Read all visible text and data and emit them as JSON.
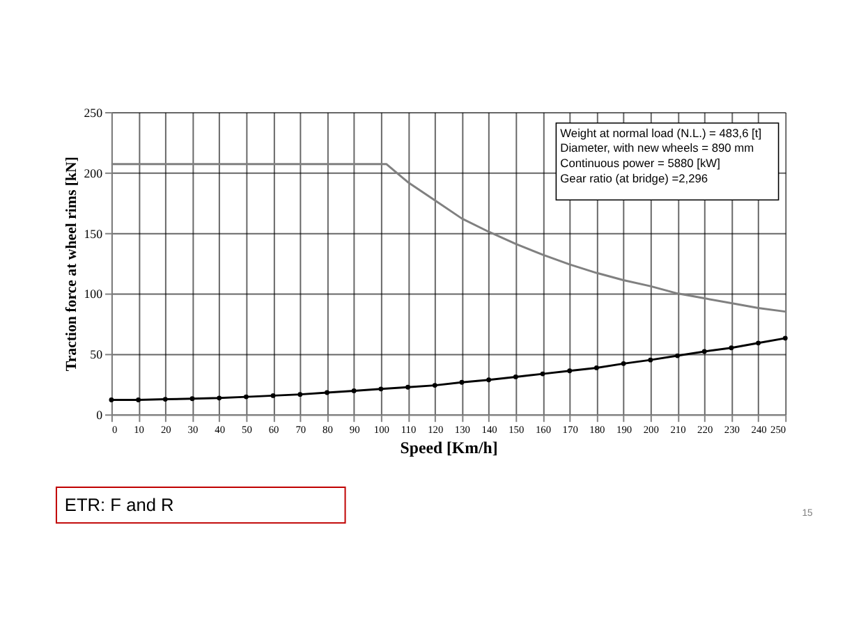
{
  "chart_data": {
    "type": "line",
    "xlabel": "Speed [Km/h]",
    "ylabel": "Traction force at wheel rims [kN]",
    "xlim": [
      0,
      250
    ],
    "xticks": [
      0,
      10,
      20,
      30,
      40,
      50,
      60,
      70,
      80,
      90,
      100,
      110,
      120,
      130,
      140,
      150,
      160,
      170,
      180,
      190,
      200,
      210,
      220,
      230,
      240,
      250
    ],
    "ylim": [
      0,
      250
    ],
    "yticks": [
      0,
      50,
      100,
      150,
      200,
      250
    ],
    "grid": true,
    "line_style": "solid",
    "series": [
      {
        "color": "#808080",
        "marker": "none",
        "x": [
          0,
          102,
          110,
          120,
          130,
          140,
          150,
          160,
          170,
          180,
          190,
          200,
          210,
          220,
          230,
          240,
          250
        ],
        "values": [
          207,
          207,
          192,
          177,
          162,
          151,
          141,
          132,
          124,
          117,
          111,
          106,
          100,
          96,
          92,
          88,
          85
        ]
      },
      {
        "color": "#000000",
        "marker": "circle",
        "x": [
          0,
          10,
          20,
          30,
          40,
          50,
          60,
          70,
          80,
          90,
          100,
          110,
          120,
          130,
          140,
          150,
          160,
          170,
          180,
          190,
          200,
          210,
          220,
          230,
          240,
          250
        ],
        "values": [
          12,
          12,
          12.5,
          13,
          13.5,
          14.5,
          15.5,
          16.5,
          18,
          19.5,
          21,
          22.5,
          24,
          26.5,
          28.5,
          31,
          33.5,
          36,
          38.5,
          42,
          45,
          48.5,
          52,
          55,
          59,
          63
        ]
      }
    ],
    "annotations": [
      "Weight at normal load (N.L.) = 483,6 [t]\nDiameter, with new wheels = 890 mm\nContinuous power = 5880 [kW]\nGear ratio (at bridge) =2,296",
      "ETR: F and R",
      "15"
    ]
  }
}
